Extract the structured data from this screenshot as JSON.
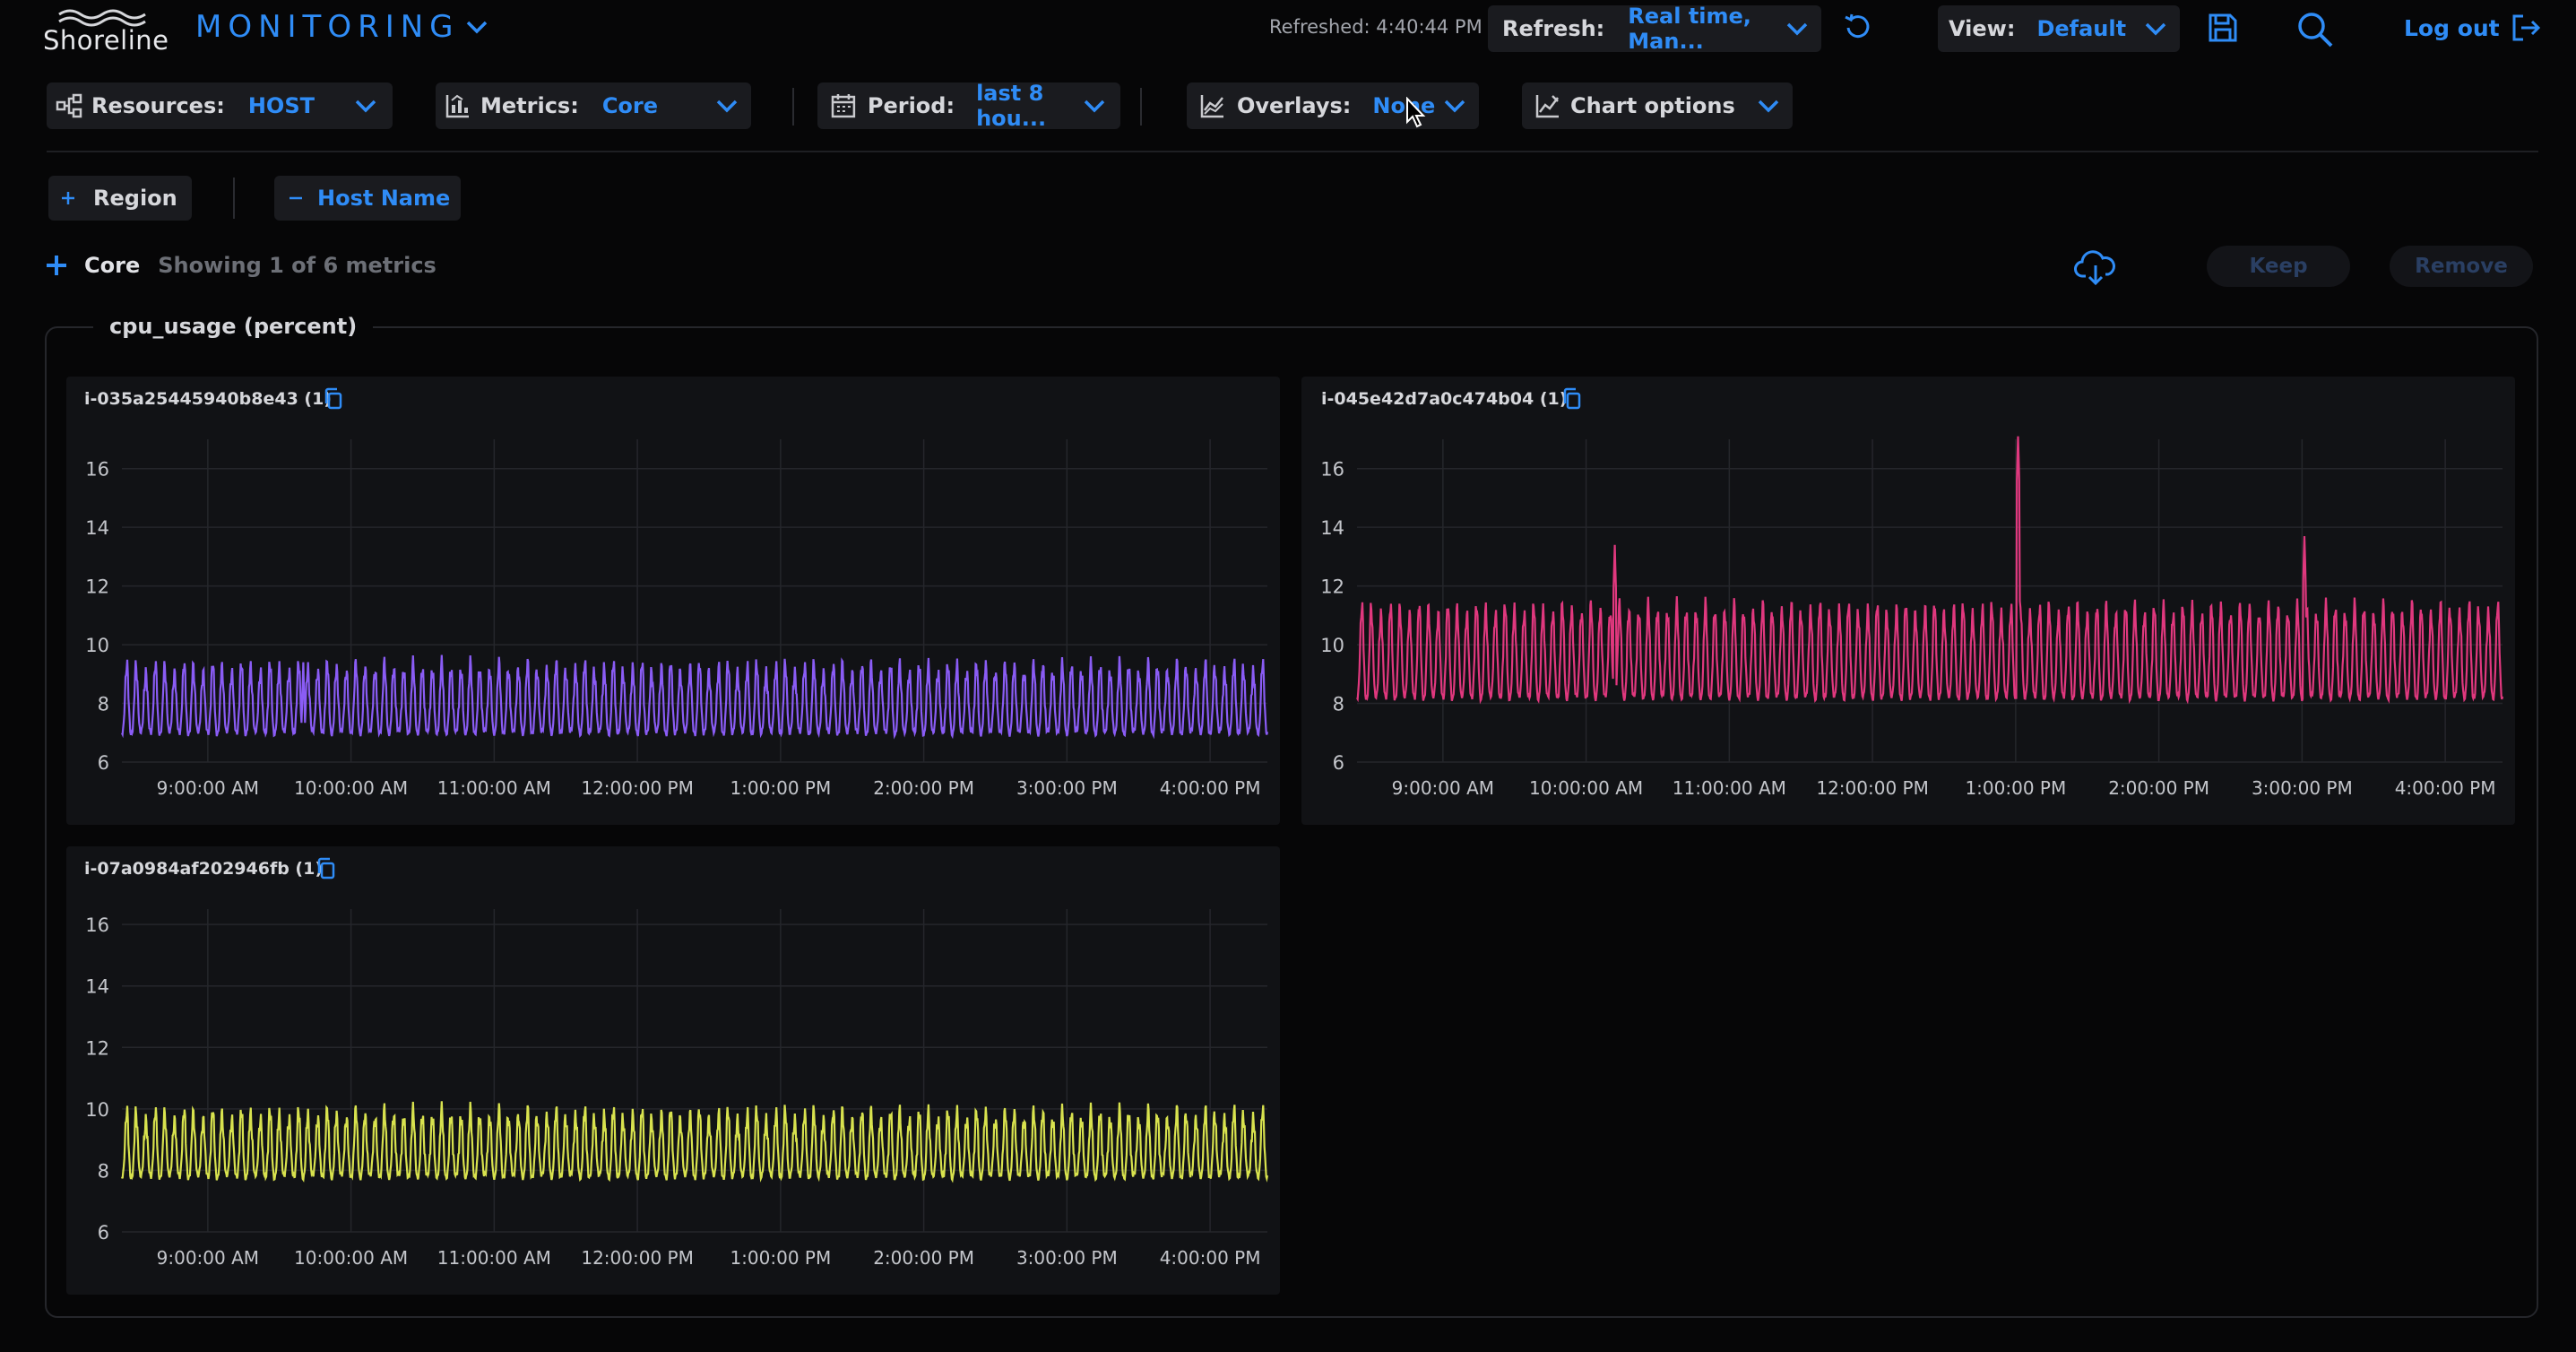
{
  "header": {
    "logo_text": "Shoreline",
    "app_title": "MONITORING",
    "refreshed_text": "Refreshed: 4:40:44 PM",
    "refresh_label": "Refresh:",
    "refresh_value": "Real time, Man...",
    "view_label": "View:",
    "view_value": "Default",
    "logout_label": "Log out"
  },
  "toolbar": {
    "resources_label": "Resources:",
    "resources_value": "HOST",
    "metrics_label": "Metrics:",
    "metrics_value": "Core",
    "period_label": "Period:",
    "period_value": "last 8 hou...",
    "overlays_label": "Overlays:",
    "overlays_value": "None",
    "chart_options_label": "Chart options"
  },
  "filters": {
    "region_label": "Region",
    "hostname_label": "Host Name"
  },
  "metrics_section": {
    "name": "Core",
    "showing_text": "Showing 1 of 6 metrics",
    "keep_label": "Keep",
    "remove_label": "Remove",
    "group_title": "cpu_usage (percent)"
  },
  "colors": {
    "accent": "#2f8cf6",
    "series_1": "#8a5cf5",
    "series_2": "#e0387e",
    "series_3": "#d8e24e",
    "background": "#060607",
    "panel": "#111215"
  },
  "chart_data": [
    {
      "type": "line",
      "title": "i-035a25445940b8e43 (1)",
      "color": "#8a5cf5",
      "x_ticks": [
        "9:00:00 AM",
        "10:00:00 AM",
        "11:00:00 AM",
        "12:00:00 PM",
        "1:00:00 PM",
        "2:00:00 PM",
        "3:00:00 PM",
        "4:00:00 PM"
      ],
      "y_ticks": [
        6,
        8,
        10,
        12,
        14,
        16
      ],
      "ylim": [
        6,
        17
      ],
      "xlim": [
        "8:24:00 AM",
        "4:24:00 PM"
      ],
      "grid": true,
      "series": [
        {
          "baseline": 7.0,
          "peak": 9.2,
          "spikes": [
            {
              "time": "9:40:00 AM",
              "value": 9.4
            }
          ]
        }
      ]
    },
    {
      "type": "line",
      "title": "i-045e42d7a0c474b04 (1)",
      "color": "#e0387e",
      "x_ticks": [
        "9:00:00 AM",
        "10:00:00 AM",
        "11:00:00 AM",
        "12:00:00 PM",
        "1:00:00 PM",
        "2:00:00 PM",
        "3:00:00 PM",
        "4:00:00 PM"
      ],
      "y_ticks": [
        6,
        8,
        10,
        12,
        14,
        16
      ],
      "ylim": [
        6,
        17
      ],
      "xlim": [
        "8:24:00 AM",
        "4:24:00 PM"
      ],
      "grid": true,
      "series": [
        {
          "baseline": 8.2,
          "peak": 11.2,
          "spikes": [
            {
              "time": "10:12:00 AM",
              "value": 13.4
            },
            {
              "time": "1:01:00 PM",
              "value": 17.1
            },
            {
              "time": "3:01:00 PM",
              "value": 13.7
            }
          ]
        }
      ]
    },
    {
      "type": "line",
      "title": "i-07a0984af202946fb (1)",
      "color": "#d8e24e",
      "x_ticks": [
        "9:00:00 AM",
        "10:00:00 AM",
        "11:00:00 AM",
        "12:00:00 PM",
        "1:00:00 PM",
        "2:00:00 PM",
        "3:00:00 PM",
        "4:00:00 PM"
      ],
      "y_ticks": [
        6,
        8,
        10,
        12,
        14,
        16
      ],
      "ylim": [
        6,
        16.5
      ],
      "xlim": [
        "8:24:00 AM",
        "4:24:00 PM"
      ],
      "grid": true,
      "series": [
        {
          "baseline": 7.8,
          "peak": 9.8,
          "spikes": []
        }
      ]
    }
  ]
}
